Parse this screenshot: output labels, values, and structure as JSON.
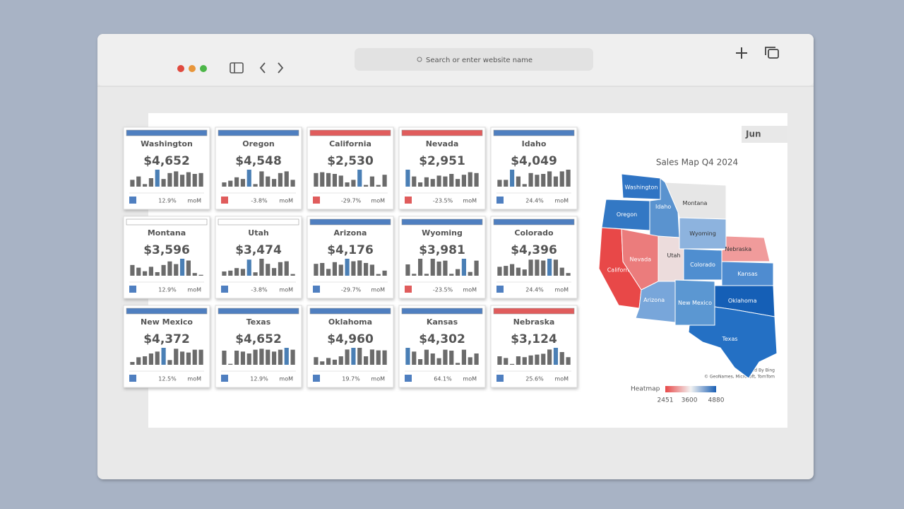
{
  "browser": {
    "search_placeholder": "Search or enter website name"
  },
  "dashboard": {
    "filter": "Jun",
    "bar_color": "#6b6b6b",
    "highlight_color": "#4a7fb5",
    "up_color": "#4f7fc0",
    "down_color": "#e05c5c",
    "cards": [
      {
        "state": "Washington",
        "value": "$4,652",
        "change": "12.9%",
        "change_label": "moM",
        "header_color": "#4f7fc0",
        "trend": "up",
        "bars": [
          8,
          12,
          3,
          10,
          20,
          9,
          16,
          18,
          14,
          17,
          15,
          16
        ],
        "highlight": 4
      },
      {
        "state": "Oregon",
        "value": "$4,548",
        "change": "-3.8%",
        "change_label": "moM",
        "header_color": "#4f7fc0",
        "trend": "down",
        "bars": [
          5,
          7,
          11,
          9,
          20,
          3,
          18,
          12,
          9,
          16,
          18,
          8
        ],
        "highlight": 4
      },
      {
        "state": "California",
        "value": "$2,530",
        "change": "-29.7%",
        "change_label": "moM",
        "header_color": "#e05c5c",
        "trend": "down",
        "bars": [
          16,
          17,
          16,
          15,
          13,
          5,
          8,
          20,
          2,
          12,
          2,
          14
        ],
        "highlight": 7
      },
      {
        "state": "Nevada",
        "value": "$2,951",
        "change": "-23.5%",
        "change_label": "moM",
        "header_color": "#e05c5c",
        "trend": "down",
        "bars": [
          20,
          12,
          5,
          11,
          9,
          13,
          12,
          15,
          9,
          14,
          17,
          16
        ],
        "highlight": 0
      },
      {
        "state": "Idaho",
        "value": "$4,049",
        "change": "24.4%",
        "change_label": "moM",
        "header_color": "#4f7fc0",
        "trend": "up",
        "bars": [
          8,
          8,
          20,
          12,
          3,
          16,
          14,
          15,
          18,
          12,
          18,
          20
        ],
        "highlight": 2
      },
      {
        "state": "Montana",
        "value": "$3,596",
        "change": "12.9%",
        "change_label": "moM",
        "header_color": "#ffffff",
        "trend": "up",
        "bars": [
          12,
          9,
          5,
          10,
          4,
          12,
          16,
          13,
          19,
          17,
          3,
          1
        ],
        "highlight": 8
      },
      {
        "state": "Utah",
        "value": "$3,474",
        "change": "-3.8%",
        "change_label": "moM",
        "header_color": "#ffffff",
        "trend": "up",
        "bars": [
          5,
          6,
          9,
          8,
          19,
          4,
          20,
          14,
          9,
          16,
          17,
          2
        ],
        "highlight": 4
      },
      {
        "state": "Arizona",
        "value": "$4,176",
        "change": "-29.7%",
        "change_label": "moM",
        "header_color": "#4f7fc0",
        "trend": "up",
        "bars": [
          14,
          15,
          8,
          16,
          13,
          20,
          17,
          18,
          15,
          13,
          2,
          6
        ],
        "highlight": 5
      },
      {
        "state": "Wyoming",
        "value": "$3,981",
        "change": "-23.5%",
        "change_label": "moM",
        "header_color": "#4f7fc0",
        "trend": "down",
        "bars": [
          12,
          2,
          18,
          2,
          18,
          15,
          16,
          2,
          7,
          18,
          4,
          16
        ],
        "highlight": 9
      },
      {
        "state": "Colorado",
        "value": "$4,396",
        "change": "24.4%",
        "change_label": "moM",
        "header_color": "#4f7fc0",
        "trend": "up",
        "bars": [
          10,
          11,
          13,
          9,
          7,
          18,
          18,
          17,
          19,
          18,
          9,
          3
        ],
        "highlight": 8
      },
      {
        "state": "New Mexico",
        "value": "$4,372",
        "change": "12.5%",
        "change_label": "moM",
        "header_color": "#4f7fc0",
        "trend": "up",
        "bars": [
          3,
          8,
          9,
          12,
          14,
          18,
          5,
          17,
          14,
          13,
          16,
          16
        ],
        "highlight": 5
      },
      {
        "state": "Texas",
        "value": "$4,652",
        "change": "12.9%",
        "change_label": "moM",
        "header_color": "#4f7fc0",
        "trend": "up",
        "bars": [
          15,
          1,
          15,
          14,
          12,
          16,
          17,
          16,
          14,
          16,
          18,
          16
        ],
        "highlight": 10
      },
      {
        "state": "Oklahoma",
        "value": "$4,960",
        "change": "19.7%",
        "change_label": "moM",
        "header_color": "#4f7fc0",
        "trend": "up",
        "bars": [
          9,
          4,
          8,
          6,
          10,
          18,
          20,
          20,
          10,
          18,
          17,
          17
        ],
        "highlight": 6
      },
      {
        "state": "Kansas",
        "value": "$4,302",
        "change": "64.1%",
        "change_label": "moM",
        "header_color": "#4f7fc0",
        "trend": "up",
        "bars": [
          18,
          14,
          6,
          16,
          12,
          7,
          16,
          15,
          2,
          16,
          8,
          12
        ],
        "highlight": 0
      },
      {
        "state": "Nebraska",
        "value": "$3,124",
        "change": "25.6%",
        "change_label": "moM",
        "header_color": "#e05c5c",
        "trend": "up",
        "bars": [
          10,
          8,
          1,
          10,
          9,
          11,
          12,
          13,
          18,
          20,
          15,
          9
        ],
        "highlight": 9
      }
    ],
    "map": {
      "title": "Sales Map Q4 2024",
      "regions": [
        {
          "name": "Washington",
          "color": "#2f74c4"
        },
        {
          "name": "Oregon",
          "color": "#3378c4"
        },
        {
          "name": "Idaho",
          "color": "#5a93cf"
        },
        {
          "name": "Montana",
          "color": "#e6e6e6"
        },
        {
          "name": "Wyoming",
          "color": "#8db3de"
        },
        {
          "name": "California",
          "color": "#e84848"
        },
        {
          "name": "Nevada",
          "color": "#eb7c7c"
        },
        {
          "name": "Utah",
          "color": "#ecdcdc"
        },
        {
          "name": "Colorado",
          "color": "#4f8ed0"
        },
        {
          "name": "Arizona",
          "color": "#78a6da"
        },
        {
          "name": "New Mexico",
          "color": "#5b97d2"
        },
        {
          "name": "Nebraska",
          "color": "#f09b9b"
        },
        {
          "name": "Kansas",
          "color": "#4f8cd0"
        },
        {
          "name": "Oklahoma",
          "color": "#155fb6"
        },
        {
          "name": "Texas",
          "color": "#2470c4"
        }
      ],
      "credit": "Powered By Bing",
      "credit_detail": "© GeoNames, Microsoft, TomTom",
      "legend": {
        "label": "Heatmap",
        "ticks": [
          2451,
          3600,
          4880
        ],
        "colors": [
          "#e84848",
          "#f2f2f2",
          "#1a5fb4"
        ]
      }
    }
  }
}
